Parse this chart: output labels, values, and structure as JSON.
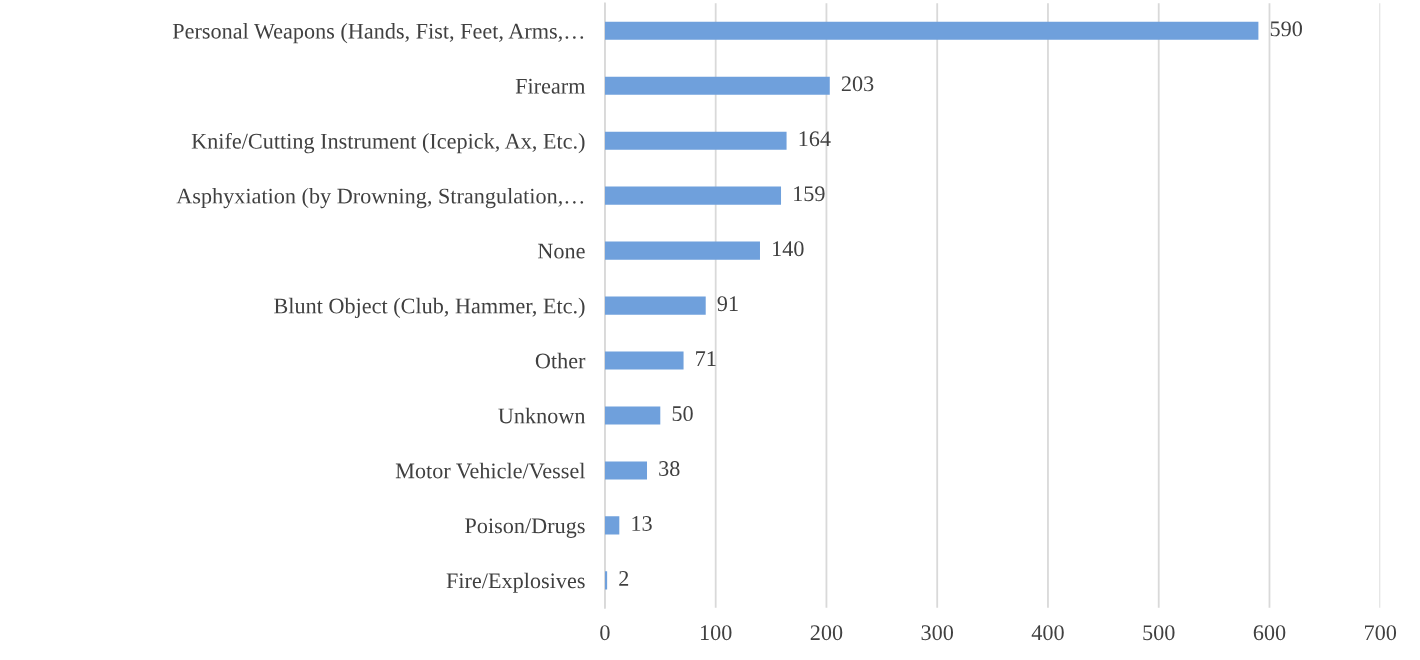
{
  "chart_data": {
    "type": "bar",
    "orientation": "horizontal",
    "categories": [
      "Personal Weapons (Hands, Fist, Feet, Arms,…",
      "Firearm",
      "Knife/Cutting Instrument (Icepick, Ax, Etc.)",
      "Asphyxiation (by Drowning, Strangulation,…",
      "None",
      "Blunt Object (Club, Hammer, Etc.)",
      "Other",
      "Unknown",
      "Motor Vehicle/Vessel",
      "Poison/Drugs",
      "Fire/Explosives"
    ],
    "values": [
      590,
      203,
      164,
      159,
      140,
      91,
      71,
      50,
      38,
      13,
      2
    ],
    "color": "#6fa0dc",
    "xlim": [
      0,
      700
    ],
    "xticks": [
      0,
      100,
      200,
      300,
      400,
      500,
      600,
      700
    ],
    "grid": "x",
    "data_labels": true
  }
}
